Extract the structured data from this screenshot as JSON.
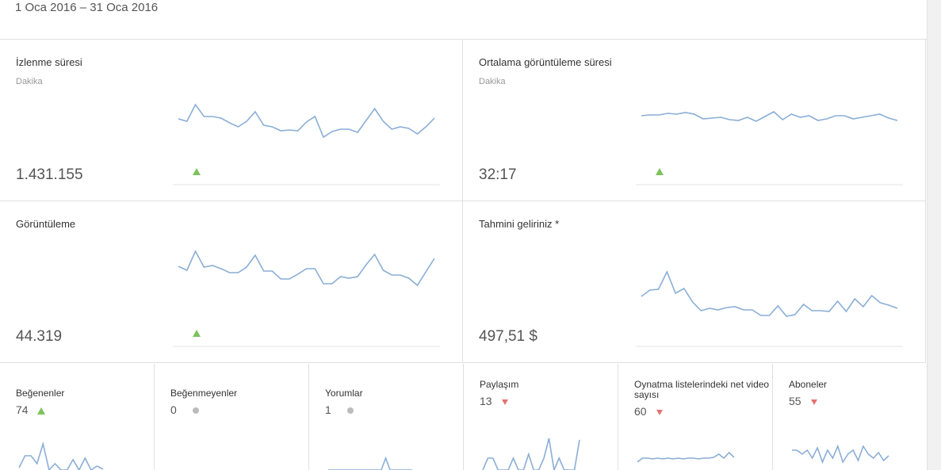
{
  "header": {
    "date_range": "1 Oca 2016 – 31 Oca 2016"
  },
  "cards": [
    {
      "title": "İzlenme süresi",
      "unit": "Dakika",
      "value": "1.431.155",
      "trend": "up",
      "sparkline": [
        50,
        47,
        68,
        53,
        53,
        51,
        45,
        40,
        47,
        59,
        42,
        40,
        35,
        36,
        35,
        46,
        53,
        27,
        34,
        37,
        37,
        33,
        48,
        63,
        47,
        37,
        40,
        38,
        31,
        40,
        51
      ]
    },
    {
      "title": "Ortalama görüntüleme süresi",
      "unit": "Dakika",
      "value": "32:17",
      "trend": "up",
      "sparkline": [
        54,
        55,
        55,
        57,
        56,
        58,
        56,
        50,
        51,
        52,
        49,
        48,
        52,
        47,
        53,
        59,
        49,
        56,
        52,
        54,
        48,
        50,
        54,
        54,
        50,
        52,
        54,
        56,
        51,
        48
      ]
    },
    {
      "title": "Görüntüleme",
      "value": "44.319",
      "trend": "up",
      "sparkline": [
        68,
        63,
        87,
        67,
        69,
        65,
        60,
        60,
        67,
        82,
        62,
        62,
        52,
        52,
        58,
        65,
        65,
        46,
        46,
        55,
        53,
        55,
        70,
        83,
        63,
        57,
        57,
        53,
        44,
        61,
        78
      ]
    },
    {
      "title": "Tahmini geliriniz *",
      "value": "497,51 $",
      "sparkline": [
        30,
        38,
        39,
        61,
        34,
        40,
        23,
        12,
        15,
        13,
        16,
        17,
        13,
        13,
        6,
        6,
        18,
        5,
        7,
        20,
        12,
        12,
        11,
        24,
        11,
        27,
        17,
        31,
        22,
        19,
        15
      ]
    }
  ],
  "small_cards": [
    {
      "title": "Beğenenler",
      "value": "74",
      "trend": "up",
      "sparkline": [
        3,
        18,
        18,
        8,
        33,
        0,
        8,
        0,
        0,
        13,
        0,
        15,
        0,
        5,
        1
      ]
    },
    {
      "title": "Beğenmeyenler",
      "value": "0",
      "trend": "flat"
    },
    {
      "title": "Yorumlar",
      "value": "1",
      "trend": "flat",
      "sparkline": [
        0,
        0,
        0,
        0,
        0,
        0,
        0,
        0,
        0,
        0,
        0,
        0,
        0,
        15,
        0,
        0,
        0,
        0,
        0,
        0
      ]
    },
    {
      "title": "Paylaşım",
      "value": "13",
      "trend": "down",
      "sparkline": [
        0,
        15,
        15,
        0,
        0,
        0,
        15,
        0,
        0,
        20,
        0,
        0,
        15,
        40,
        0,
        15,
        0,
        0,
        0,
        38
      ]
    },
    {
      "title": "Oynatma listelerindeki net video sayısı",
      "value": "60",
      "trend": "down",
      "sparkline": [
        10,
        15,
        15,
        14,
        15,
        14,
        15,
        14,
        15,
        14,
        15,
        15,
        14,
        15,
        15,
        16,
        20,
        15,
        22,
        16
      ]
    },
    {
      "title": "Aboneler",
      "value": "55",
      "trend": "down",
      "sparkline": [
        25,
        25,
        20,
        25,
        15,
        28,
        10,
        25,
        15,
        30,
        10,
        20,
        25,
        12,
        30,
        20,
        15,
        22,
        12,
        18
      ]
    }
  ]
}
